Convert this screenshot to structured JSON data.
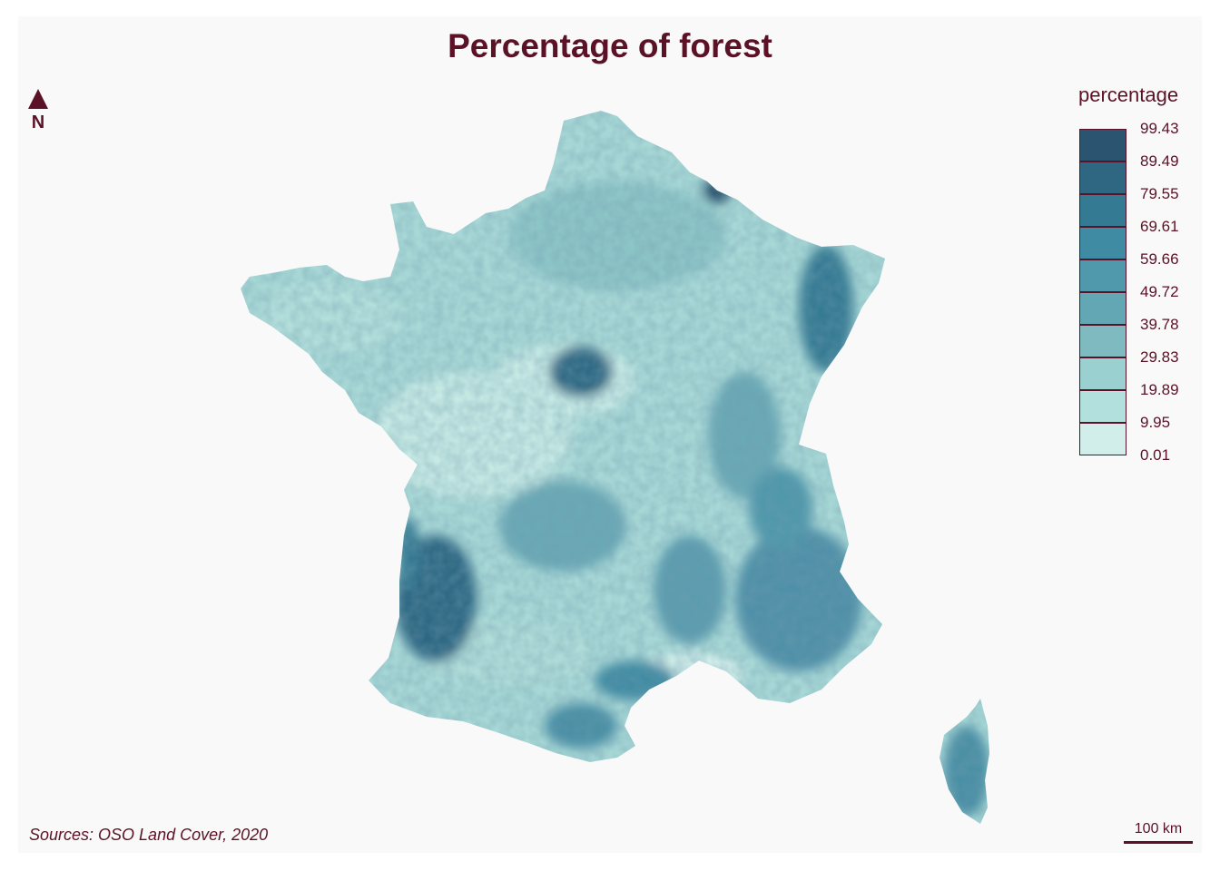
{
  "title": "Percentage of forest",
  "north_arrow": {
    "label": "N",
    "icon": "north-arrow-icon"
  },
  "legend": {
    "title": "percentage",
    "breaks": [
      "99.43",
      "89.49",
      "79.55",
      "69.61",
      "59.66",
      "49.72",
      "39.78",
      "29.83",
      "19.89",
      "9.95",
      "0.01"
    ],
    "colors": [
      "#2b5470",
      "#2f6783",
      "#357a93",
      "#3f8ba3",
      "#5098ab",
      "#64a7b4",
      "#7fbac0",
      "#9ad0cf",
      "#b2e0dc",
      "#d1eeea"
    ]
  },
  "source": "Sources: OSO Land Cover, 2020",
  "scale_bar": {
    "label": "100 km"
  },
  "colors": {
    "text": "#5b1226",
    "background": "#f9f9f9",
    "land_base": "#a9d9d7"
  }
}
